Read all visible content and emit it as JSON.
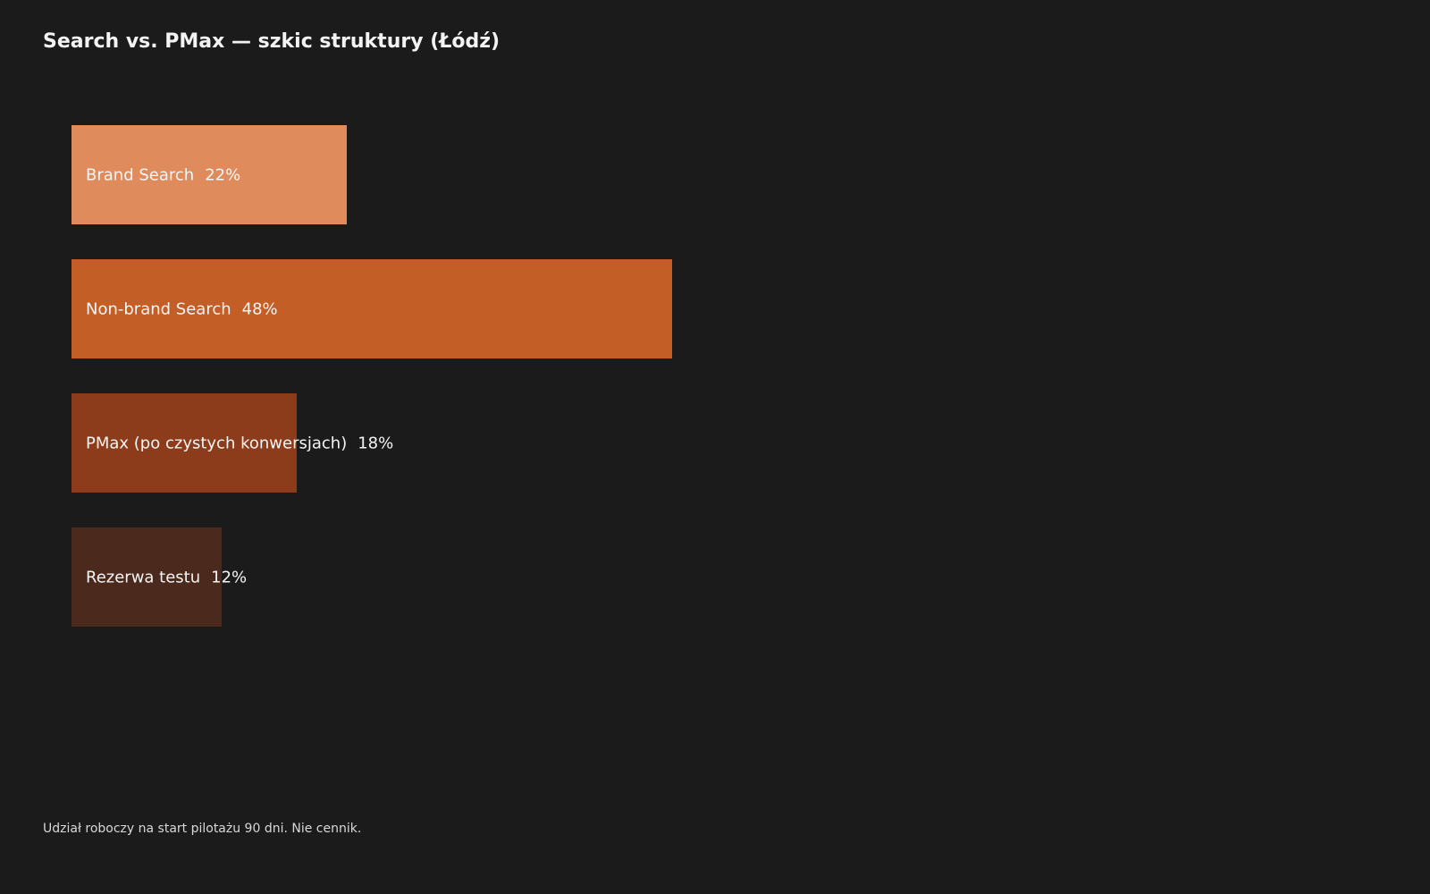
{
  "chart_data": {
    "type": "bar",
    "orientation": "horizontal",
    "title": "Search vs. PMax — szkic struktury (Łódź)",
    "categories": [
      "Brand Search",
      "Non-brand Search",
      "PMax (po czystych konwersjach)",
      "Rezerwa testu"
    ],
    "values": [
      22,
      48,
      18,
      12
    ],
    "value_labels": [
      "22%",
      "48%",
      "18%",
      "12%"
    ],
    "colors": [
      "#e08b5c",
      "#c45e27",
      "#8d3c1b",
      "#4b291c"
    ],
    "xlim": [
      0,
      100
    ],
    "grid": false,
    "axes_visible": false,
    "legend": "none"
  },
  "footnote": "Udział roboczy na start pilotażu 90 dni. Nie cennik.",
  "colors": {
    "background": "#1b1b1b",
    "text": "#f5f5f5"
  }
}
